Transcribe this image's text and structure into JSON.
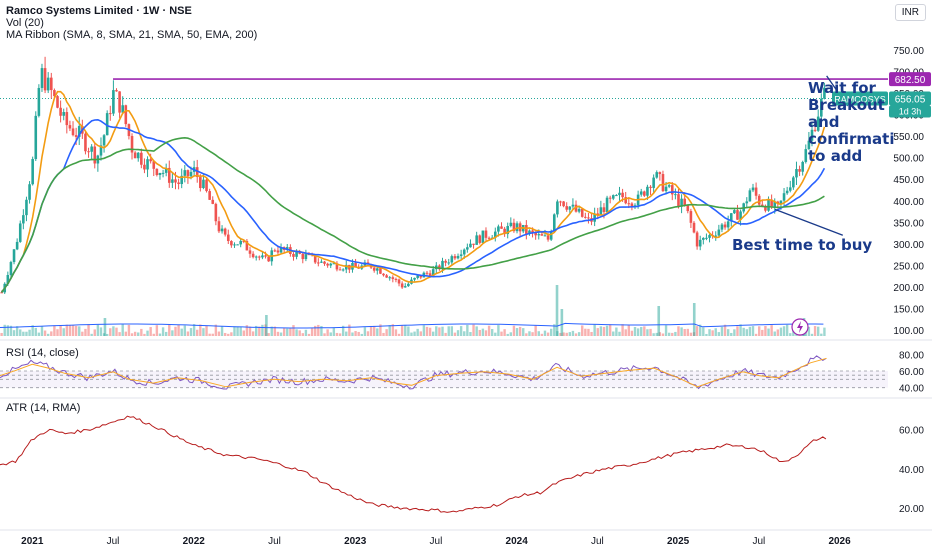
{
  "header": {
    "title": "Ramco Systems Limited · 1W · NSE",
    "vol_label": "Vol (20)",
    "ma_label": "MA Ribbon (SMA, 8, SMA, 21, SMA, 50, EMA, 200)",
    "currency": "INR"
  },
  "indicators": {
    "rsi_label": "RSI (14, close)",
    "atr_label": "ATR (14, RMA)"
  },
  "annotations": {
    "breakout_lines": [
      "Wait for",
      "Breakout",
      "and",
      "confirmati",
      "to add"
    ],
    "buy_text": "Best time to buy"
  },
  "price_tags": {
    "resistance": "682.50",
    "symbol": "RAMCOSYS",
    "last": "656.05",
    "countdown": "1d 3h"
  },
  "colors": {
    "up": "#26a69a",
    "down": "#ef5350",
    "ma8": "#f39c12",
    "ma21": "#2962ff",
    "ma50": "#43a047",
    "resistance": "#9c27b0",
    "rsi": "#7e57c2",
    "atr": "#b71c1c",
    "annotation": "#1a3a8a"
  },
  "chart_data": {
    "type": "candlestick",
    "price_axis": {
      "ylim": [
        140,
        780
      ],
      "ticks": [
        100,
        150,
        200,
        250,
        300,
        350,
        400,
        450,
        500,
        550,
        600,
        650,
        700,
        750
      ]
    },
    "rsi_axis": {
      "ylim": [
        30,
        90
      ],
      "ticks": [
        40,
        60,
        80
      ],
      "bands": [
        40,
        50,
        55,
        60
      ]
    },
    "atr_axis": {
      "ylim": [
        15,
        70
      ],
      "ticks": [
        20,
        40,
        60
      ]
    },
    "x_axis": {
      "range": [
        2020.8,
        2026.3
      ],
      "ticks": [
        {
          "label": "2021",
          "t": 2021.0
        },
        {
          "label": "Jul",
          "t": 2021.5
        },
        {
          "label": "2022",
          "t": 2022.0
        },
        {
          "label": "Jul",
          "t": 2022.5
        },
        {
          "label": "2023",
          "t": 2023.0
        },
        {
          "label": "Jul",
          "t": 2023.5
        },
        {
          "label": "2024",
          "t": 2024.0
        },
        {
          "label": "Jul",
          "t": 2024.5
        },
        {
          "label": "2025",
          "t": 2025.0
        },
        {
          "label": "Jul",
          "t": 2025.5
        },
        {
          "label": "2026",
          "t": 2026.0
        }
      ]
    },
    "resistance_level": 682.5,
    "last_price": 656.05,
    "close_points": [
      [
        2020.8,
        175
      ],
      [
        2020.9,
        300
      ],
      [
        2021.0,
        480
      ],
      [
        2021.05,
        700
      ],
      [
        2021.12,
        650
      ],
      [
        2021.2,
        580
      ],
      [
        2021.3,
        550
      ],
      [
        2021.4,
        500
      ],
      [
        2021.45,
        560
      ],
      [
        2021.5,
        650
      ],
      [
        2021.55,
        620
      ],
      [
        2021.62,
        520
      ],
      [
        2021.7,
        490
      ],
      [
        2021.8,
        470
      ],
      [
        2021.9,
        440
      ],
      [
        2022.0,
        470
      ],
      [
        2022.05,
        440
      ],
      [
        2022.1,
        400
      ],
      [
        2022.15,
        340
      ],
      [
        2022.2,
        310
      ],
      [
        2022.3,
        300
      ],
      [
        2022.4,
        270
      ],
      [
        2022.45,
        260
      ],
      [
        2022.5,
        290
      ],
      [
        2022.6,
        280
      ],
      [
        2022.7,
        270
      ],
      [
        2022.8,
        255
      ],
      [
        2022.9,
        250
      ],
      [
        2023.0,
        245
      ],
      [
        2023.1,
        250
      ],
      [
        2023.15,
        240
      ],
      [
        2023.25,
        215
      ],
      [
        2023.3,
        200
      ],
      [
        2023.4,
        225
      ],
      [
        2023.5,
        240
      ],
      [
        2023.6,
        270
      ],
      [
        2023.7,
        300
      ],
      [
        2023.8,
        320
      ],
      [
        2023.9,
        330
      ],
      [
        2024.0,
        340
      ],
      [
        2024.1,
        320
      ],
      [
        2024.2,
        310
      ],
      [
        2024.25,
        410
      ],
      [
        2024.35,
        380
      ],
      [
        2024.45,
        350
      ],
      [
        2024.55,
        390
      ],
      [
        2024.65,
        410
      ],
      [
        2024.75,
        400
      ],
      [
        2024.85,
        460
      ],
      [
        2024.95,
        420
      ],
      [
        2025.0,
        400
      ],
      [
        2025.05,
        380
      ],
      [
        2025.12,
        300
      ],
      [
        2025.2,
        320
      ],
      [
        2025.3,
        350
      ],
      [
        2025.4,
        380
      ],
      [
        2025.45,
        430
      ],
      [
        2025.5,
        400
      ],
      [
        2025.55,
        390
      ],
      [
        2025.62,
        380
      ],
      [
        2025.7,
        450
      ],
      [
        2025.8,
        520
      ],
      [
        2025.86,
        600
      ],
      [
        2025.92,
        656
      ]
    ],
    "volume_spikes": [
      {
        "t": 2024.25,
        "v": 0.85
      },
      {
        "t": 2024.28,
        "v": 0.45
      },
      {
        "t": 2021.45,
        "v": 0.3
      },
      {
        "t": 2022.45,
        "v": 0.35
      },
      {
        "t": 2024.88,
        "v": 0.5
      },
      {
        "t": 2025.1,
        "v": 0.55
      },
      {
        "t": 2025.78,
        "v": 0.3
      }
    ],
    "atr_points": [
      [
        2020.8,
        42
      ],
      [
        2020.9,
        44
      ],
      [
        2021.0,
        55
      ],
      [
        2021.1,
        60
      ],
      [
        2021.2,
        58
      ],
      [
        2021.35,
        60
      ],
      [
        2021.5,
        64
      ],
      [
        2021.6,
        67
      ],
      [
        2021.75,
        62
      ],
      [
        2021.9,
        56
      ],
      [
        2022.0,
        52
      ],
      [
        2022.2,
        47
      ],
      [
        2022.4,
        45
      ],
      [
        2022.55,
        42
      ],
      [
        2022.7,
        38
      ],
      [
        2022.8,
        33
      ],
      [
        2022.95,
        27
      ],
      [
        2023.1,
        22
      ],
      [
        2023.3,
        20
      ],
      [
        2023.5,
        19
      ],
      [
        2023.6,
        18
      ],
      [
        2023.75,
        20
      ],
      [
        2023.9,
        22
      ],
      [
        2024.0,
        26
      ],
      [
        2024.15,
        28
      ],
      [
        2024.25,
        33
      ],
      [
        2024.4,
        37
      ],
      [
        2024.55,
        40
      ],
      [
        2024.7,
        42
      ],
      [
        2024.85,
        45
      ],
      [
        2025.0,
        48
      ],
      [
        2025.15,
        50
      ],
      [
        2025.3,
        52
      ],
      [
        2025.45,
        51
      ],
      [
        2025.55,
        48
      ],
      [
        2025.65,
        43
      ],
      [
        2025.75,
        48
      ],
      [
        2025.85,
        55
      ],
      [
        2025.92,
        56
      ]
    ],
    "rsi_points": [
      [
        2020.8,
        55
      ],
      [
        2020.9,
        62
      ],
      [
        2021.0,
        70
      ],
      [
        2021.1,
        65
      ],
      [
        2021.2,
        58
      ],
      [
        2021.35,
        52
      ],
      [
        2021.5,
        60
      ],
      [
        2021.6,
        50
      ],
      [
        2021.75,
        45
      ],
      [
        2021.9,
        52
      ],
      [
        2022.05,
        48
      ],
      [
        2022.2,
        40
      ],
      [
        2022.35,
        46
      ],
      [
        2022.5,
        50
      ],
      [
        2022.65,
        47
      ],
      [
        2022.8,
        50
      ],
      [
        2022.95,
        48
      ],
      [
        2023.1,
        52
      ],
      [
        2023.25,
        45
      ],
      [
        2023.35,
        42
      ],
      [
        2023.5,
        55
      ],
      [
        2023.65,
        58
      ],
      [
        2023.8,
        60
      ],
      [
        2023.95,
        57
      ],
      [
        2024.1,
        50
      ],
      [
        2024.25,
        66
      ],
      [
        2024.4,
        54
      ],
      [
        2024.55,
        58
      ],
      [
        2024.7,
        62
      ],
      [
        2024.85,
        65
      ],
      [
        2025.0,
        52
      ],
      [
        2025.12,
        40
      ],
      [
        2025.25,
        50
      ],
      [
        2025.4,
        60
      ],
      [
        2025.5,
        55
      ],
      [
        2025.62,
        52
      ],
      [
        2025.72,
        62
      ],
      [
        2025.82,
        72
      ],
      [
        2025.92,
        78
      ]
    ],
    "ma_smoothing": [
      8,
      21,
      50
    ]
  }
}
